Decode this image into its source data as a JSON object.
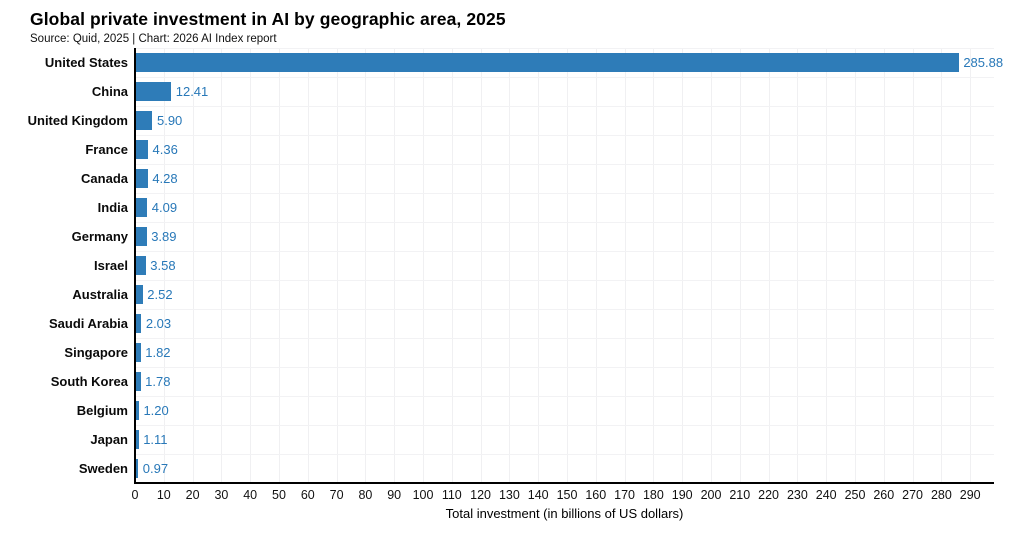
{
  "header": {
    "title": "Global private investment in AI by geographic area, 2025",
    "source": "Source: Quid, 2025 | Chart: 2026 AI Index report"
  },
  "chart_data": {
    "type": "bar",
    "orientation": "horizontal",
    "title": "Global private investment in AI by geographic area, 2025",
    "subtitle": "Source: Quid, 2025 | Chart: 2026 AI Index report",
    "categories": [
      "United States",
      "China",
      "United Kingdom",
      "France",
      "Canada",
      "India",
      "Germany",
      "Israel",
      "Australia",
      "Saudi Arabia",
      "Singapore",
      "South Korea",
      "Belgium",
      "Japan",
      "Sweden"
    ],
    "values": [
      285.88,
      12.41,
      5.9,
      4.36,
      4.28,
      4.09,
      3.89,
      3.58,
      2.52,
      2.03,
      1.82,
      1.78,
      1.2,
      1.11,
      0.97
    ],
    "value_labels": [
      "285.88",
      "12.41",
      "5.90",
      "4.36",
      "4.28",
      "4.09",
      "3.89",
      "3.58",
      "2.52",
      "2.03",
      "1.82",
      "1.78",
      "1.20",
      "1.11",
      "0.97"
    ],
    "xlabel": "Total investment (in billions of US dollars)",
    "ylabel": "",
    "xlim": [
      0,
      298
    ],
    "x_ticks": [
      0,
      10,
      20,
      30,
      40,
      50,
      60,
      70,
      80,
      90,
      100,
      110,
      120,
      130,
      140,
      150,
      160,
      170,
      180,
      190,
      200,
      210,
      220,
      230,
      240,
      250,
      260,
      270,
      280,
      290
    ],
    "grid": true,
    "legend": false,
    "colors": {
      "bar": "#2e7cb8",
      "value_label": "#2878b8",
      "grid_line": "#f0f0f2",
      "axis_line": "#000000",
      "text": "#111111"
    }
  }
}
